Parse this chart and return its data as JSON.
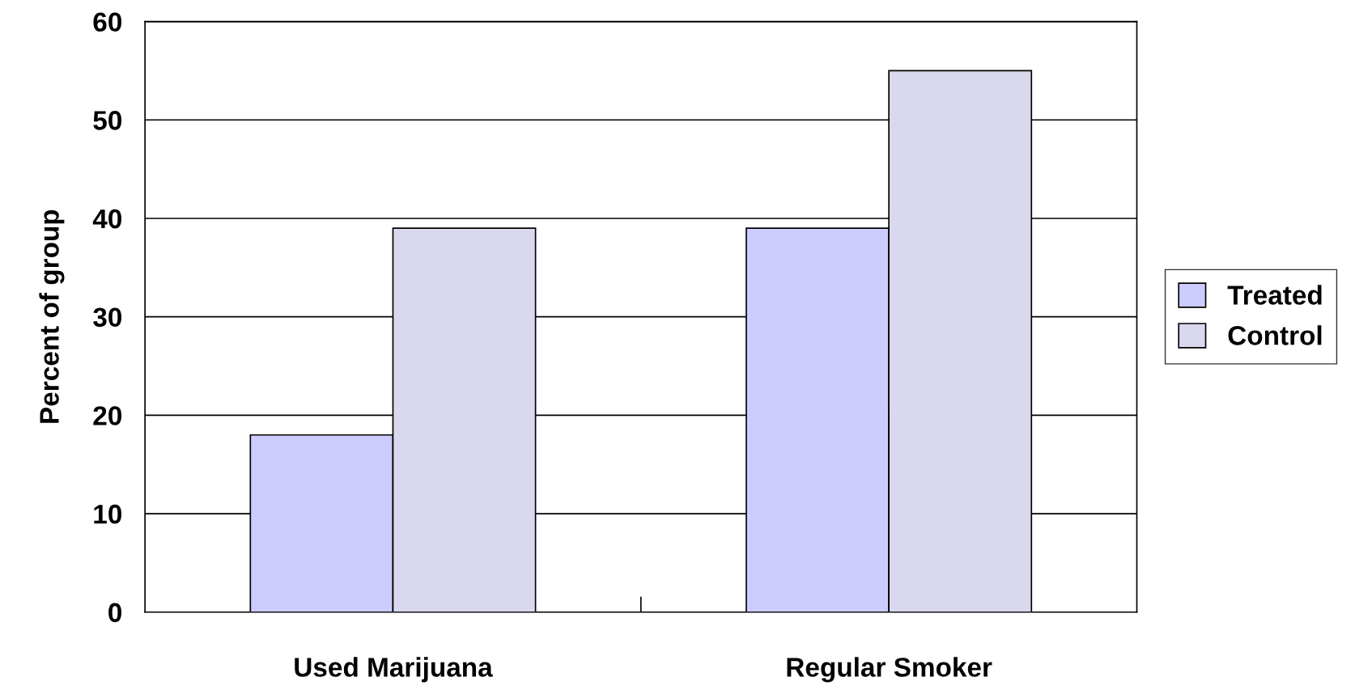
{
  "chart_data": {
    "type": "bar",
    "ylabel": "Percent of group",
    "categories": [
      "Used Marijuana",
      "Regular Smoker"
    ],
    "series": [
      {
        "name": "Treated",
        "color": "#ccccff",
        "values": [
          18,
          39
        ]
      },
      {
        "name": "Control",
        "color": "#dad8ee",
        "values": [
          39,
          55
        ]
      }
    ],
    "ylim": [
      0,
      60
    ],
    "yticks": [
      0,
      10,
      20,
      30,
      40,
      50,
      60
    ],
    "grid": "y",
    "legend": "right"
  }
}
